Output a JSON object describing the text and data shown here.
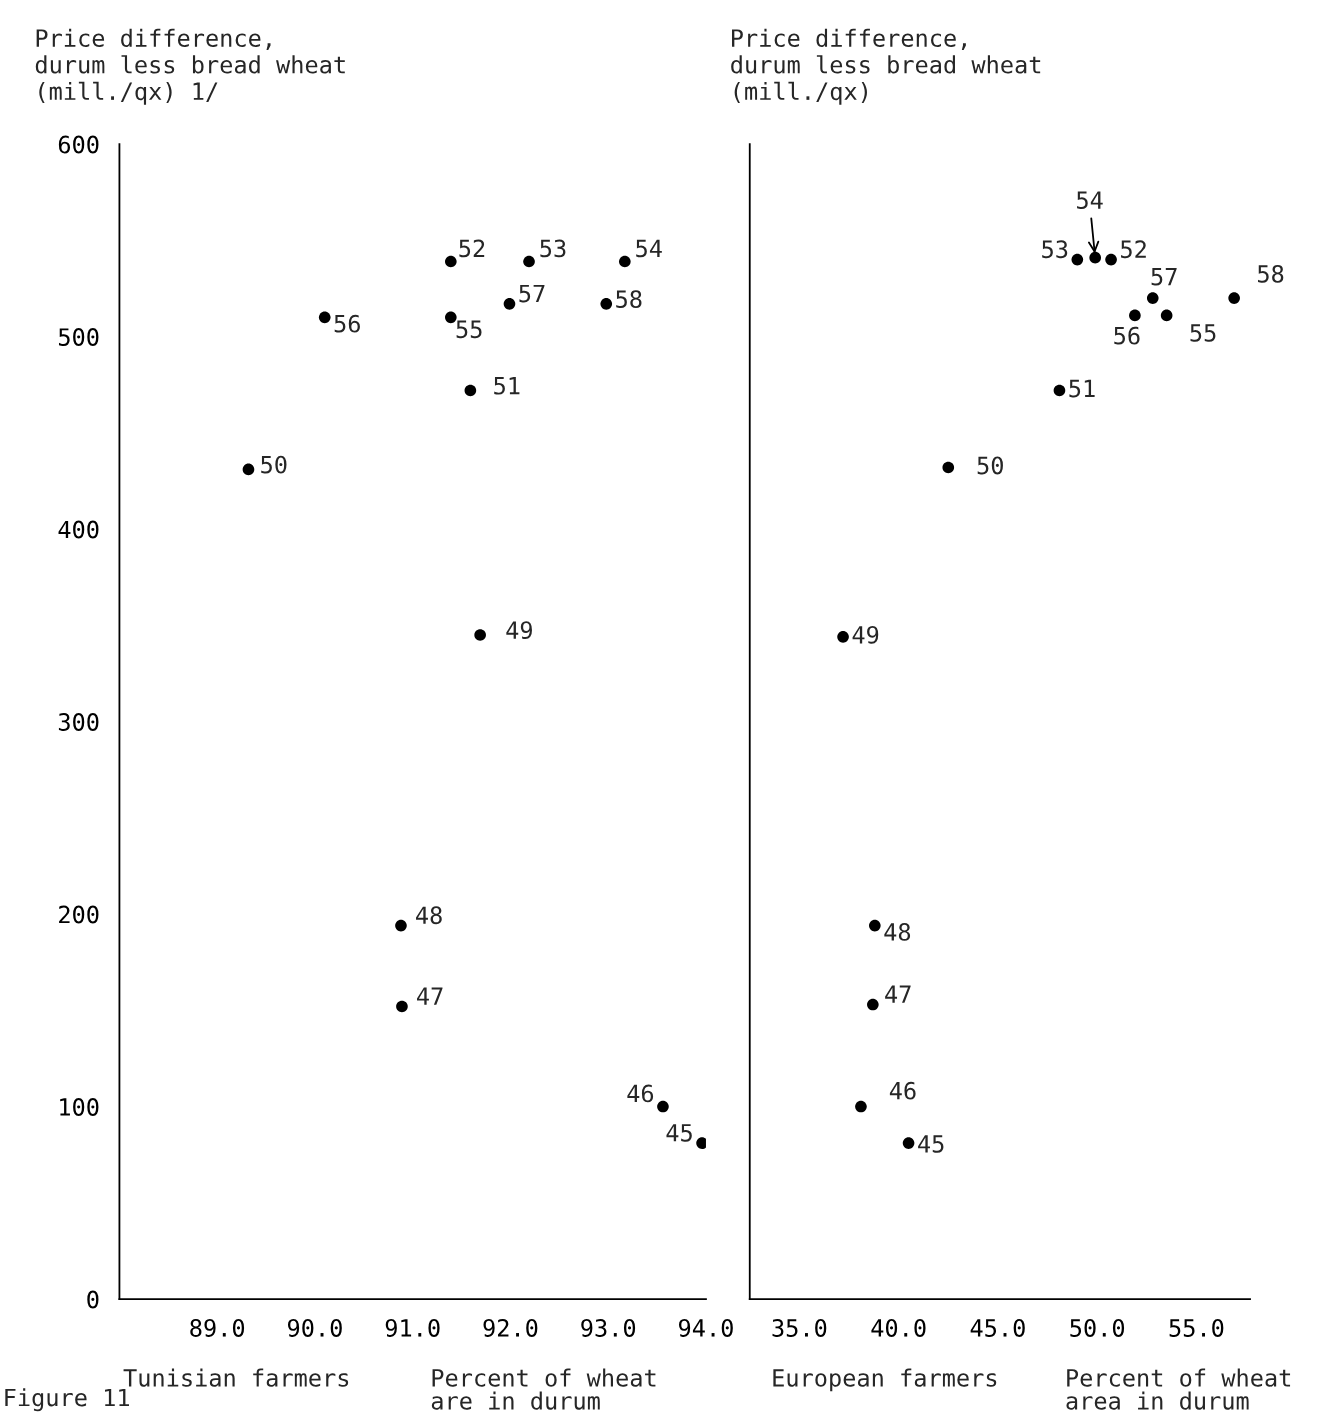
{
  "chart_data": [
    {
      "type": "scatter",
      "title": "Tunisian farmers",
      "xlabel": "Percent of wheat\nare in durum",
      "ylabel": "Price difference,\ndurum less bread wheat\n(mill./qx) 1/",
      "x": [
        93.96,
        93.56,
        90.89,
        90.88,
        91.69,
        89.32,
        91.59,
        91.39,
        92.19,
        93.17,
        91.39,
        90.1,
        91.99,
        92.98
      ],
      "values": [
        81,
        100,
        152,
        194,
        345,
        431,
        472,
        539,
        539,
        539,
        510,
        510,
        517,
        517
      ],
      "color": "#000000",
      "marker": "circle",
      "xlim": [
        88.0,
        94.0
      ],
      "xticks": [
        {
          "value": 89,
          "label": "89.0"
        },
        {
          "value": 90,
          "label": "90.0"
        },
        {
          "value": 91,
          "label": "91.0"
        },
        {
          "value": 92,
          "label": "92.0"
        },
        {
          "value": 93,
          "label": "93.0"
        },
        {
          "value": 94,
          "label": "94.0"
        }
      ],
      "ylim": [
        0,
        600
      ],
      "yticks": [
        0,
        100,
        200,
        300,
        400,
        500,
        600
      ],
      "annotations": [
        {
          "text": "45",
          "x": 93.96,
          "y": 81
        },
        {
          "text": "46",
          "x": 93.56,
          "y": 100
        },
        {
          "text": "47",
          "x": 90.89,
          "y": 152
        },
        {
          "text": "48",
          "x": 90.88,
          "y": 194
        },
        {
          "text": "49",
          "x": 91.69,
          "y": 345
        },
        {
          "text": "50",
          "x": 89.32,
          "y": 431
        },
        {
          "text": "51",
          "x": 91.59,
          "y": 472
        },
        {
          "text": "52",
          "x": 91.39,
          "y": 539
        },
        {
          "text": "53",
          "x": 92.19,
          "y": 539
        },
        {
          "text": "54",
          "x": 93.17,
          "y": 539
        },
        {
          "text": "55",
          "x": 91.39,
          "y": 510
        },
        {
          "text": "56",
          "x": 90.1,
          "y": 510
        },
        {
          "text": "57",
          "x": 91.99,
          "y": 517
        },
        {
          "text": "58",
          "x": 92.98,
          "y": 517
        },
        "Figure 11"
      ]
    },
    {
      "type": "scatter",
      "title": "European farmers",
      "xlabel": "Percent of wheat\narea in durum",
      "ylabel": "Price difference,\ndurum less bread wheat\n(mill./qx)",
      "x": [
        40.5,
        38.1,
        38.7,
        38.8,
        37.2,
        42.5,
        48.1,
        50.7,
        49.0,
        49.9,
        53.5,
        51.9,
        52.8,
        56.9
      ],
      "values": [
        81,
        100,
        153,
        194,
        344,
        432,
        472,
        540,
        540,
        541,
        511,
        511,
        520,
        520
      ],
      "color": "#000000",
      "marker": "circle",
      "xlim": [
        32.5,
        57.7
      ],
      "xticks": [
        {
          "value": 35,
          "label": "35.0"
        },
        {
          "value": 40,
          "label": "40.0"
        },
        {
          "value": 45,
          "label": "45.0"
        },
        {
          "value": 50,
          "label": "50.0"
        },
        {
          "value": 55,
          "label": "55.0"
        }
      ],
      "ylim": [
        0,
        600
      ],
      "yticks": [
        0,
        100,
        200,
        300,
        400,
        500,
        600
      ],
      "tick_labels": "x",
      "annotations": [
        {
          "text": "45",
          "x": 40.5,
          "y": 81
        },
        {
          "text": "46",
          "x": 38.1,
          "y": 100
        },
        {
          "text": "47",
          "x": 38.7,
          "y": 153
        },
        {
          "text": "48",
          "x": 38.8,
          "y": 194
        },
        {
          "text": "49",
          "x": 37.2,
          "y": 344
        },
        {
          "text": "50",
          "x": 42.5,
          "y": 432
        },
        {
          "text": "51",
          "x": 48.1,
          "y": 472
        },
        {
          "text": "52",
          "x": 50.7,
          "y": 540
        },
        {
          "text": "53",
          "x": 49.0,
          "y": 540
        },
        {
          "text": "54",
          "x": 49.9,
          "y": 541
        },
        {
          "text": "55",
          "x": 53.5,
          "y": 511
        },
        {
          "text": "56",
          "x": 51.9,
          "y": 511
        },
        {
          "text": "57",
          "x": 52.8,
          "y": 520
        },
        {
          "text": "58",
          "x": 56.9,
          "y": 520
        }
      ]
    }
  ]
}
